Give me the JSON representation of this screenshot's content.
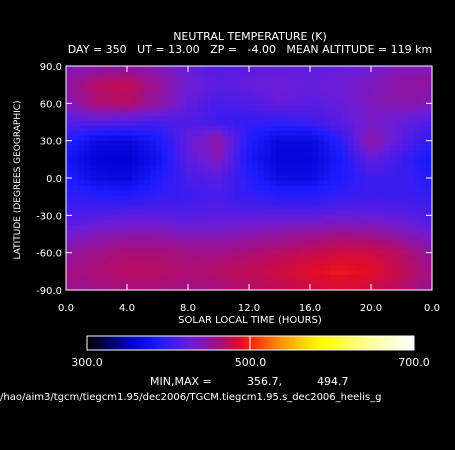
{
  "chart_data": {
    "type": "heatmap",
    "title": "NEUTRAL TEMPERATURE (K)",
    "subtitle": "DAY = 350   UT = 13.00   ZP =   -4.00   MEAN ALTITUDE = 119 km",
    "xlabel": "SOLAR LOCAL TIME (HOURS)",
    "ylabel": "LATITUDE (DEGREES GEOGRAPHIC)",
    "xlim": [
      0,
      24
    ],
    "ylim": [
      -90,
      90
    ],
    "x_ticks": [
      "0.0",
      "4.0",
      "8.0",
      "12.0",
      "16.0",
      "20.0",
      "0.0"
    ],
    "x_tick_values": [
      0,
      4,
      8,
      12,
      16,
      20,
      24
    ],
    "y_ticks": [
      "90.0",
      "60.0",
      "30.0",
      "0.0",
      "-30.0",
      "-60.0",
      "-90.0"
    ],
    "y_tick_values": [
      90,
      60,
      30,
      0,
      -30,
      -60,
      -90
    ],
    "x": [
      0,
      2,
      4,
      6,
      8,
      10,
      12,
      14,
      16,
      18,
      20,
      22,
      24
    ],
    "y": [
      90,
      75,
      60,
      45,
      30,
      15,
      0,
      -15,
      -30,
      -45,
      -60,
      -75,
      -90
    ],
    "z": [
      [
        440,
        445,
        450,
        440,
        425,
        415,
        420,
        425,
        420,
        425,
        430,
        440,
        440
      ],
      [
        450,
        470,
        475,
        455,
        430,
        420,
        425,
        430,
        425,
        430,
        440,
        450,
        450
      ],
      [
        440,
        465,
        470,
        450,
        425,
        410,
        415,
        425,
        420,
        425,
        440,
        445,
        440
      ],
      [
        415,
        420,
        415,
        410,
        415,
        405,
        400,
        400,
        405,
        420,
        435,
        425,
        415
      ],
      [
        395,
        370,
        365,
        385,
        425,
        450,
        390,
        365,
        365,
        395,
        450,
        420,
        395
      ],
      [
        380,
        360,
        357,
        375,
        420,
        440,
        385,
        362,
        363,
        385,
        425,
        405,
        380
      ],
      [
        390,
        370,
        365,
        390,
        410,
        420,
        395,
        370,
        370,
        390,
        405,
        405,
        390
      ],
      [
        400,
        395,
        390,
        400,
        405,
        410,
        400,
        395,
        395,
        400,
        405,
        405,
        400
      ],
      [
        410,
        415,
        420,
        420,
        415,
        420,
        420,
        420,
        420,
        425,
        425,
        420,
        410
      ],
      [
        430,
        440,
        445,
        445,
        440,
        440,
        445,
        450,
        455,
        460,
        455,
        445,
        430
      ],
      [
        450,
        460,
        465,
        465,
        460,
        460,
        465,
        470,
        475,
        480,
        480,
        470,
        450
      ],
      [
        460,
        465,
        470,
        470,
        465,
        470,
        475,
        480,
        488,
        494,
        488,
        475,
        460
      ],
      [
        455,
        460,
        462,
        462,
        460,
        462,
        468,
        472,
        478,
        482,
        478,
        468,
        455
      ]
    ],
    "colorbar": {
      "min": 300.0,
      "max": 700.0,
      "tick_labels": [
        "300.0",
        "500.0",
        "700.0"
      ],
      "tick_values": [
        300,
        500,
        700
      ]
    },
    "minmax_label": "MIN,MAX =",
    "min_text": "356.7,",
    "max_text": "494.7",
    "file_path": "/hao/aim3/tgcm/tiegcm1.95/dec2006/TGCM.tiegcm1.95.s_dec2006_heelis_g",
    "grid": false,
    "legend": "bottom-colorbar"
  }
}
